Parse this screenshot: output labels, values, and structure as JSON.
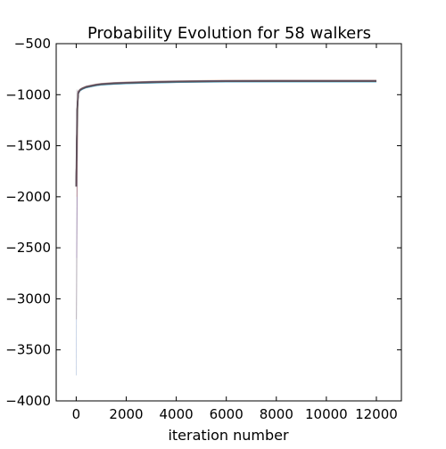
{
  "chart_data": {
    "type": "line",
    "title": "Probability Evolution for 58 walkers",
    "xlabel": "iteration number",
    "ylabel": "",
    "xlim": [
      -800,
      13000
    ],
    "ylim": [
      -4000,
      -500
    ],
    "xticks": [
      0,
      2000,
      4000,
      6000,
      8000,
      10000,
      12000
    ],
    "xtick_labels": [
      "0",
      "2000",
      "4000",
      "6000",
      "8000",
      "10000",
      "12000"
    ],
    "yticks": [
      -500,
      -1000,
      -1500,
      -2000,
      -2500,
      -3000,
      -3500,
      -4000
    ],
    "ytick_labels": [
      "−500",
      "−1000",
      "−1500",
      "−2000",
      "−2500",
      "−3000",
      "−3500",
      "−4000"
    ],
    "grid": false,
    "legend": "none",
    "walker_count": 58,
    "series_colors": [
      "#4c72b0",
      "#8c564b",
      "#9467bd",
      "#dd8452",
      "#55a868",
      "#c44e52",
      "#17becf"
    ],
    "burnin_spike": {
      "x": [
        0,
        10,
        20,
        30,
        40,
        50,
        70,
        100
      ],
      "y_min": [
        -3750,
        -3200,
        -2600,
        -2000,
        -1500,
        -1200,
        -1050,
        -990
      ]
    },
    "series": [
      {
        "x": [
          0,
          40,
          80,
          150,
          250,
          400,
          600,
          800,
          1000,
          1500,
          2000,
          3000,
          4000,
          5000,
          6000,
          8000,
          10000,
          12000
        ],
        "y": [
          -1900,
          -1150,
          -985,
          -955,
          -940,
          -925,
          -915,
          -905,
          -898,
          -890,
          -885,
          -878,
          -873,
          -870,
          -868,
          -867,
          -867,
          -867
        ]
      }
    ]
  }
}
